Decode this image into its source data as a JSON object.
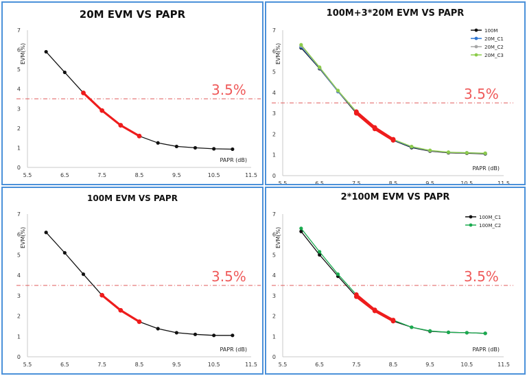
{
  "chart_data": [
    {
      "type": "line",
      "title": "20M EVM VS PAPR",
      "xlabel": "PAPR (dB)",
      "ylabel": "EVM(%)",
      "xlim": [
        5.5,
        11.5
      ],
      "ylim": [
        0,
        7
      ],
      "xticks": [
        "5.5",
        "6.5",
        "7.5",
        "8.5",
        "9.5",
        "10.5",
        "11.5"
      ],
      "yticks": [
        "0",
        "1",
        "2",
        "3",
        "4",
        "5",
        "6",
        "7"
      ],
      "threshold": {
        "value": 3.5,
        "label": "3.5%"
      },
      "highlight_range": [
        7,
        8.5
      ],
      "legend": "none",
      "series": [
        {
          "x": [
            6,
            6.5,
            7,
            7.5,
            8,
            8.5,
            9,
            9.5,
            10,
            10.5,
            11
          ],
          "y": [
            5.9,
            4.85,
            3.8,
            2.9,
            2.15,
            1.6,
            1.25,
            1.07,
            1.0,
            0.95,
            0.93
          ],
          "color": "#111111"
        }
      ]
    },
    {
      "type": "line",
      "title": "100M+3*20M EVM VS PAPR",
      "xlabel": "PAPR (dB)",
      "ylabel": "EVM(%)",
      "xlim": [
        5.5,
        11.5
      ],
      "ylim": [
        0,
        7
      ],
      "xticks": [
        "5.5",
        "6.5",
        "7.5",
        "8.5",
        "9.5",
        "10.5",
        "11.5"
      ],
      "yticks": [
        "0",
        "1",
        "2",
        "3",
        "4",
        "5",
        "6",
        "7"
      ],
      "threshold": {
        "value": 3.5,
        "label": "3.5%"
      },
      "highlight_range": [
        7.5,
        8.5
      ],
      "legend": "top-right",
      "series": [
        {
          "name": "100M",
          "x": [
            6,
            6.5,
            7,
            7.5,
            8,
            8.5,
            9,
            9.5,
            10,
            10.5,
            11
          ],
          "y": [
            6.15,
            5.15,
            4.05,
            3.0,
            2.25,
            1.7,
            1.35,
            1.18,
            1.1,
            1.08,
            1.05
          ],
          "color": "#111111"
        },
        {
          "name": "20M_C1",
          "x": [
            6,
            6.5,
            7,
            7.5,
            8,
            8.5,
            9,
            9.5,
            10,
            10.5,
            11
          ],
          "y": [
            6.2,
            5.18,
            4.05,
            3.05,
            2.3,
            1.72,
            1.38,
            1.2,
            1.12,
            1.1,
            1.07
          ],
          "color": "#2e75d1"
        },
        {
          "name": "20M_C2",
          "x": [
            6,
            6.5,
            7,
            7.5,
            8,
            8.5,
            9,
            9.5,
            10,
            10.5,
            11
          ],
          "y": [
            6.25,
            5.2,
            4.08,
            3.05,
            2.3,
            1.74,
            1.4,
            1.2,
            1.12,
            1.1,
            1.08
          ],
          "color": "#a6a6a6"
        },
        {
          "name": "20M_C3",
          "x": [
            6,
            6.5,
            7,
            7.5,
            8,
            8.5,
            9,
            9.5,
            10,
            10.5,
            11
          ],
          "y": [
            6.3,
            5.22,
            4.1,
            3.08,
            2.32,
            1.75,
            1.4,
            1.22,
            1.13,
            1.1,
            1.08
          ],
          "color": "#8ccc4a"
        }
      ]
    },
    {
      "type": "line",
      "title": "100M EVM VS PAPR",
      "xlabel": "PAPR (dB)",
      "ylabel": "EVM(%)",
      "xlim": [
        5.5,
        11.5
      ],
      "ylim": [
        0,
        7
      ],
      "xticks": [
        "5.5",
        "6.5",
        "7.5",
        "8.5",
        "9.5",
        "10.5",
        "11.5"
      ],
      "yticks": [
        "0",
        "1",
        "2",
        "3",
        "4",
        "5",
        "6",
        "7"
      ],
      "threshold": {
        "value": 3.5,
        "label": "3.5%"
      },
      "highlight_range": [
        7.5,
        8.5
      ],
      "legend": "none",
      "series": [
        {
          "x": [
            6,
            6.5,
            7,
            7.5,
            8,
            8.5,
            9,
            9.5,
            10,
            10.5,
            11
          ],
          "y": [
            6.1,
            5.1,
            4.05,
            3.02,
            2.28,
            1.72,
            1.38,
            1.18,
            1.1,
            1.05,
            1.05
          ],
          "color": "#111111"
        }
      ]
    },
    {
      "type": "line",
      "title": "2*100M EVM VS PAPR",
      "xlabel": "PAPR (dB)",
      "ylabel": "EVM(%)",
      "xlim": [
        5.5,
        11.5
      ],
      "ylim": [
        0,
        7
      ],
      "xticks": [
        "5.5",
        "6.5",
        "7.5",
        "8.5",
        "9.5",
        "10.5",
        "11.5"
      ],
      "yticks": [
        "0",
        "1",
        "2",
        "3",
        "4",
        "5",
        "6",
        "7"
      ],
      "threshold": {
        "value": 3.5,
        "label": "3.5%"
      },
      "highlight_range": [
        7.5,
        8.5
      ],
      "legend": "top-right",
      "series": [
        {
          "name": "100M_C1",
          "x": [
            6,
            6.5,
            7,
            7.5,
            8,
            8.5,
            9,
            9.5,
            10,
            10.5,
            11
          ],
          "y": [
            6.15,
            5.0,
            3.95,
            2.95,
            2.25,
            1.75,
            1.45,
            1.25,
            1.2,
            1.18,
            1.15
          ],
          "color": "#111111"
        },
        {
          "name": "100M_C2",
          "x": [
            6,
            6.5,
            7,
            7.5,
            8,
            8.5,
            9,
            9.5,
            10,
            10.5,
            11
          ],
          "y": [
            6.3,
            5.15,
            4.05,
            3.05,
            2.3,
            1.8,
            1.45,
            1.27,
            1.2,
            1.18,
            1.15
          ],
          "color": "#1aab4f"
        }
      ]
    }
  ]
}
